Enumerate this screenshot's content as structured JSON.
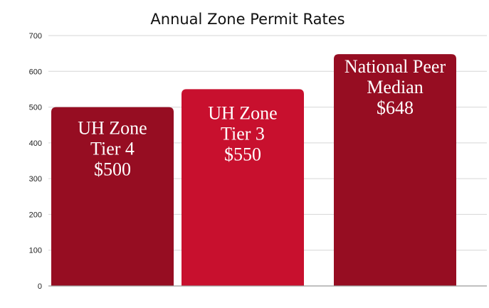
{
  "chart_data": {
    "type": "bar",
    "title": "Annual Zone Permit Rates",
    "xlabel": "",
    "ylabel": "",
    "ylim": [
      0,
      700
    ],
    "yticks": [
      0,
      100,
      200,
      300,
      400,
      500,
      600,
      700
    ],
    "grid": true,
    "categories": [
      "UH Zone Tier 4",
      "UH Zone Tier 3",
      "National Peer Median"
    ],
    "values": [
      500,
      550,
      648
    ],
    "bar_labels": [
      [
        "UH Zone",
        "Tier 4",
        "$500"
      ],
      [
        "UH Zone",
        "Tier 3",
        "$550"
      ],
      [
        "National Peer",
        "Median",
        "$648"
      ]
    ],
    "colors": [
      "#960d22",
      "#c8102e",
      "#960d22"
    ]
  }
}
